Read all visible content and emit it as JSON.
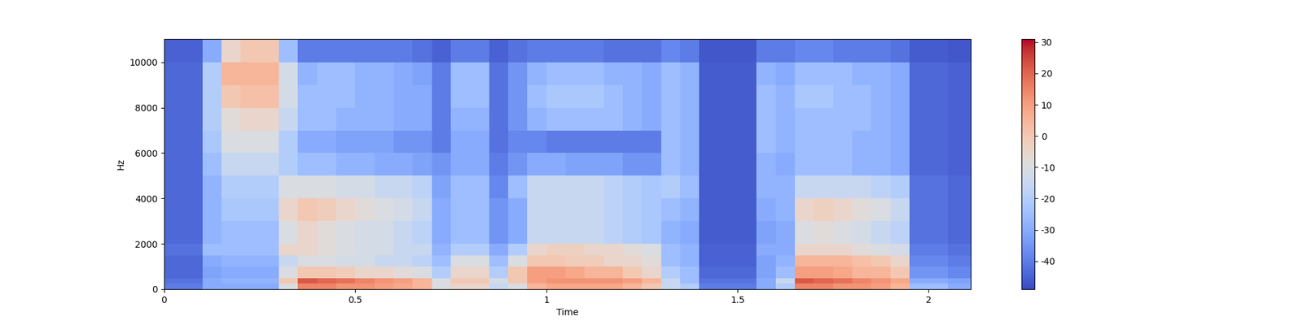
{
  "chart_data": {
    "type": "heatmap",
    "x_label": "Time",
    "y_label": "Hz",
    "xlim": [
      0,
      2.11
    ],
    "xticks": [
      0,
      0.5,
      1,
      1.5,
      2
    ],
    "ylim": [
      0,
      11025
    ],
    "yticks": [
      0,
      2000,
      4000,
      6000,
      8000,
      10000
    ],
    "color": "coolwarm",
    "color_range": [
      -49,
      31
    ],
    "color_ticks": [
      -40,
      -30,
      -20,
      -10,
      0,
      10,
      20,
      30
    ],
    "x_edges": [
      0,
      0.05,
      0.1,
      0.15,
      0.2,
      0.25,
      0.3,
      0.35,
      0.4,
      0.45,
      0.5,
      0.55,
      0.6,
      0.65,
      0.7,
      0.75,
      0.8,
      0.85,
      0.9,
      0.95,
      1.0,
      1.05,
      1.1,
      1.15,
      1.2,
      1.25,
      1.3,
      1.35,
      1.4,
      1.45,
      1.5,
      1.55,
      1.6,
      1.65,
      1.7,
      1.75,
      1.8,
      1.85,
      1.9,
      1.95,
      2.0,
      2.05,
      2.1,
      2.11
    ],
    "y_edges": [
      0,
      250,
      500,
      1000,
      1500,
      2000,
      3000,
      4000,
      5000,
      6000,
      7000,
      8000,
      9000,
      10000,
      11025
    ],
    "cells": [
      [
        -40,
        -40,
        -30,
        -30,
        -30,
        -30,
        -10,
        15,
        15,
        12,
        12,
        10,
        8,
        5,
        -10,
        -5,
        -5,
        -15,
        -10,
        5,
        8,
        8,
        8,
        8,
        5,
        0,
        -15,
        -20,
        -40,
        -40,
        -40,
        -30,
        -20,
        15,
        15,
        12,
        12,
        10,
        5,
        -25,
        -25,
        -30,
        -30
      ],
      [
        -42,
        -42,
        -30,
        -28,
        -28,
        -28,
        0,
        22,
        20,
        18,
        15,
        12,
        10,
        5,
        -10,
        0,
        0,
        -12,
        0,
        10,
        12,
        12,
        12,
        12,
        10,
        5,
        -15,
        -25,
        -42,
        -42,
        -42,
        -30,
        -15,
        22,
        20,
        18,
        15,
        12,
        8,
        -30,
        -30,
        -32,
        -32
      ],
      [
        -44,
        -44,
        -32,
        -30,
        -30,
        -30,
        -10,
        0,
        0,
        -2,
        -5,
        -5,
        -8,
        -10,
        -20,
        -5,
        -5,
        -20,
        0,
        10,
        10,
        8,
        5,
        5,
        0,
        -5,
        -20,
        -25,
        -44,
        -44,
        -44,
        -32,
        -25,
        10,
        10,
        8,
        5,
        5,
        0,
        -35,
        -35,
        -38,
        -38
      ],
      [
        -44,
        -44,
        -30,
        -28,
        -28,
        -28,
        -15,
        -10,
        -10,
        -12,
        -12,
        -15,
        -15,
        -18,
        -25,
        -10,
        -10,
        -25,
        -10,
        0,
        0,
        -2,
        -2,
        -5,
        -5,
        -8,
        -25,
        -28,
        -45,
        -45,
        -45,
        -32,
        -28,
        5,
        5,
        5,
        2,
        0,
        -5,
        -38,
        -38,
        -40,
        -40
      ],
      [
        -42,
        -42,
        -25,
        -25,
        -25,
        -25,
        -5,
        -5,
        -8,
        -10,
        -12,
        -12,
        -15,
        -15,
        -28,
        -20,
        -20,
        -30,
        -20,
        -5,
        -3,
        -3,
        -5,
        -5,
        -8,
        -10,
        -25,
        -28,
        -45,
        -45,
        -45,
        -30,
        -30,
        -5,
        -5,
        -5,
        -8,
        -10,
        -12,
        -40,
        -40,
        -42,
        -42
      ],
      [
        -44,
        -44,
        -28,
        -25,
        -25,
        -25,
        -10,
        -5,
        -8,
        -10,
        -12,
        -12,
        -15,
        -18,
        -30,
        -25,
        -25,
        -35,
        -30,
        -15,
        -15,
        -15,
        -15,
        -18,
        -20,
        -22,
        -28,
        -30,
        -46,
        -46,
        -46,
        -32,
        -30,
        -10,
        -8,
        -10,
        -12,
        -15,
        -18,
        -42,
        -42,
        -44,
        -44
      ],
      [
        -44,
        -44,
        -28,
        -22,
        -22,
        -22,
        -5,
        0,
        -2,
        -5,
        -8,
        -10,
        -12,
        -15,
        -30,
        -25,
        -25,
        -35,
        -30,
        -15,
        -15,
        -15,
        -15,
        -18,
        -20,
        -22,
        -25,
        -28,
        -46,
        -46,
        -46,
        -30,
        -28,
        -5,
        -3,
        -5,
        -8,
        -10,
        -15,
        -42,
        -42,
        -44,
        -44
      ],
      [
        -44,
        -44,
        -28,
        -20,
        -20,
        -20,
        -10,
        -10,
        -10,
        -12,
        -12,
        -15,
        -15,
        -18,
        -32,
        -25,
        -25,
        -38,
        -25,
        -15,
        -15,
        -15,
        -15,
        -18,
        -20,
        -22,
        -20,
        -25,
        -46,
        -46,
        -46,
        -28,
        -28,
        -15,
        -15,
        -15,
        -15,
        -18,
        -20,
        -42,
        -42,
        -44,
        -44
      ],
      [
        -44,
        -44,
        -25,
        -15,
        -15,
        -15,
        -20,
        -25,
        -25,
        -28,
        -28,
        -30,
        -30,
        -32,
        -35,
        -30,
        -30,
        -40,
        -35,
        -30,
        -30,
        -32,
        -32,
        -32,
        -35,
        -35,
        -25,
        -28,
        -46,
        -46,
        -46,
        -28,
        -30,
        -25,
        -25,
        -25,
        -28,
        -28,
        -30,
        -44,
        -44,
        -45,
        -45
      ],
      [
        -44,
        -44,
        -22,
        -10,
        -10,
        -10,
        -20,
        -30,
        -30,
        -32,
        -32,
        -32,
        -35,
        -35,
        -40,
        -30,
        -30,
        -42,
        -38,
        -38,
        -40,
        -40,
        -40,
        -40,
        -40,
        -40,
        -25,
        -28,
        -46,
        -46,
        -46,
        -25,
        -28,
        -25,
        -25,
        -25,
        -28,
        -28,
        -30,
        -44,
        -44,
        -45,
        -45
      ],
      [
        -44,
        -44,
        -20,
        -8,
        -5,
        -5,
        -15,
        -25,
        -25,
        -28,
        -28,
        -28,
        -30,
        -30,
        -40,
        -28,
        -28,
        -42,
        -35,
        -28,
        -25,
        -25,
        -25,
        -25,
        -28,
        -30,
        -25,
        -28,
        -46,
        -46,
        -46,
        -25,
        -28,
        -25,
        -25,
        -25,
        -25,
        -28,
        -30,
        -44,
        -44,
        -45,
        -45
      ],
      [
        -44,
        -44,
        -20,
        0,
        2,
        2,
        -12,
        -25,
        -25,
        -25,
        -28,
        -28,
        -30,
        -30,
        -40,
        -25,
        -25,
        -42,
        -35,
        -25,
        -22,
        -22,
        -22,
        -25,
        -28,
        -30,
        -25,
        -28,
        -46,
        -46,
        -46,
        -25,
        -28,
        -22,
        -22,
        -25,
        -25,
        -28,
        -30,
        -44,
        -44,
        -45,
        -45
      ],
      [
        -44,
        -44,
        -20,
        5,
        5,
        5,
        -12,
        -28,
        -25,
        -25,
        -28,
        -28,
        -30,
        -32,
        -40,
        -25,
        -25,
        -42,
        -35,
        -28,
        -25,
        -25,
        -25,
        -28,
        -28,
        -30,
        -25,
        -28,
        -46,
        -46,
        -46,
        -28,
        -30,
        -25,
        -25,
        -25,
        -28,
        -28,
        -30,
        -44,
        -44,
        -45,
        -45
      ],
      [
        -45,
        -45,
        -30,
        -5,
        0,
        0,
        -25,
        -40,
        -40,
        -40,
        -40,
        -40,
        -40,
        -42,
        -45,
        -40,
        -40,
        -45,
        -42,
        -40,
        -40,
        -40,
        -40,
        -42,
        -42,
        -42,
        -38,
        -40,
        -47,
        -47,
        -47,
        -40,
        -40,
        -38,
        -38,
        -40,
        -40,
        -40,
        -42,
        -46,
        -46,
        -47,
        -47
      ]
    ]
  }
}
